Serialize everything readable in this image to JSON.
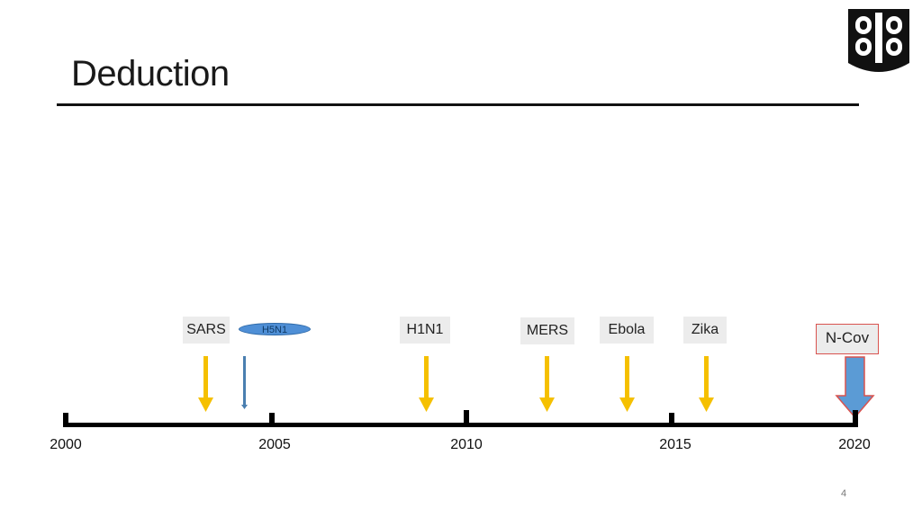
{
  "slide": {
    "title": "Deduction",
    "page_number": "4"
  },
  "years": [
    "2000",
    "2005",
    "2010",
    "2015",
    "2020"
  ],
  "events": {
    "sars": "SARS",
    "h5n1": "H5N1",
    "h1n1": "H1N1",
    "mers": "MERS",
    "ebola": "Ebola",
    "zika": "Zika",
    "ncov": "N-Cov"
  },
  "colors": {
    "event_arrow": "#f5c000",
    "h5n1_arrow": "#4a7fb0",
    "ncov_arrow_fill": "#5b9bd5",
    "ncov_arrow_stroke": "#d9534f"
  }
}
